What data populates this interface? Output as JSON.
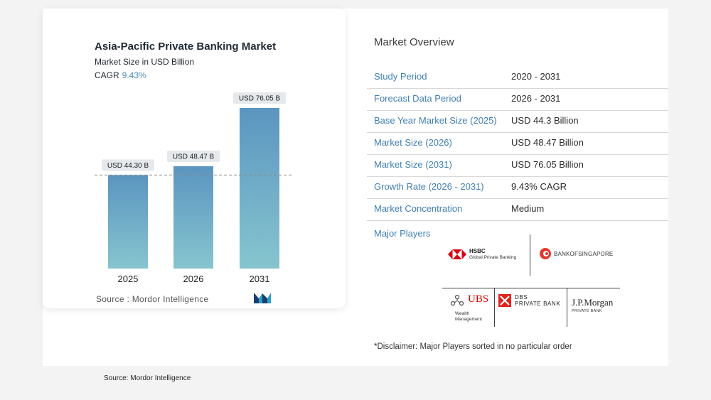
{
  "chart_data": {
    "type": "bar",
    "title": "Asia-Pacific Private Banking Market",
    "subtitle": "Market Size in USD Billion",
    "cagr_label": "CAGR",
    "cagr_value": "9.43%",
    "categories": [
      "2025",
      "2026",
      "2031"
    ],
    "values": [
      44.3,
      48.47,
      76.05
    ],
    "data_labels": [
      "USD 44.30 B",
      "USD 48.47 B",
      "USD 76.05 B"
    ],
    "bar_color_top": "#5b95c0",
    "bar_color_bottom": "#86c5cf",
    "reference_line_value": 44.3,
    "ylim": [
      0,
      80
    ],
    "grid": false
  },
  "source_left": "Source :  Mordor Intelligence",
  "overview": {
    "title": "Market Overview",
    "rows": [
      {
        "key": "Study Period",
        "value": "2020 - 2031"
      },
      {
        "key": "Forecast Data Period",
        "value": "2026 - 2031"
      },
      {
        "key": "Base Year Market Size (2025)",
        "value": "USD 44.3 Billion"
      },
      {
        "key": "Market Size (2026)",
        "value": "USD 48.47 Billion"
      },
      {
        "key": "Market Size (2031)",
        "value": "USD 76.05 Billion"
      },
      {
        "key": "Growth Rate (2026 - 2031)",
        "value": "9.43% CAGR"
      },
      {
        "key": "Market Concentration",
        "value": "Medium"
      }
    ],
    "major_players_label": "Major Players",
    "players": {
      "hsbc": {
        "name": "HSBC",
        "tagline": "Global Private Banking"
      },
      "bos": {
        "name": "BANKOFSINGAPORE"
      },
      "ubs": {
        "name": "UBS",
        "tagline1": "Wealth",
        "tagline2": "Management"
      },
      "dbs": {
        "name1": "DBS",
        "name2": "PRIVATE BANK"
      },
      "jpm": {
        "name": "J.P.Morgan",
        "tagline": "PRIVATE BANK"
      }
    },
    "disclaimer": "*Disclaimer: Major Players sorted in no particular order"
  },
  "source_bottom": "Source: Mordor Intelligence",
  "colors": {
    "accent_blue": "#3f7fb5",
    "hsbc_red": "#db0011",
    "bos_red": "#e03a2f",
    "ubs_red": "#e60000",
    "dbs_red": "#e2231a"
  }
}
